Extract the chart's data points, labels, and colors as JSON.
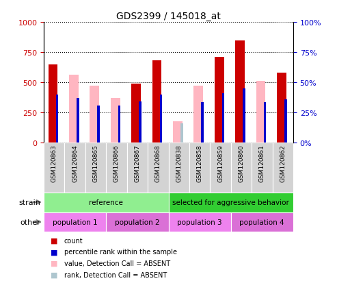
{
  "title": "GDS2399 / 145018_at",
  "samples": [
    "GSM120863",
    "GSM120864",
    "GSM120865",
    "GSM120866",
    "GSM120867",
    "GSM120868",
    "GSM120838",
    "GSM120858",
    "GSM120859",
    "GSM120860",
    "GSM120861",
    "GSM120862"
  ],
  "count": [
    650,
    0,
    0,
    0,
    490,
    680,
    0,
    0,
    710,
    850,
    0,
    580
  ],
  "value_absent": [
    0,
    565,
    470,
    370,
    0,
    0,
    175,
    470,
    0,
    0,
    510,
    0
  ],
  "percentile_rank": [
    400,
    370,
    310,
    310,
    340,
    400,
    0,
    335,
    410,
    450,
    335,
    360
  ],
  "rank_absent": [
    0,
    0,
    0,
    0,
    0,
    0,
    160,
    0,
    0,
    0,
    0,
    0
  ],
  "ylim": [
    0,
    1000
  ],
  "y2lim": [
    0,
    100
  ],
  "yticks": [
    0,
    250,
    500,
    750,
    1000
  ],
  "y2ticks": [
    0,
    25,
    50,
    75,
    100
  ],
  "color_count": "#cc0000",
  "color_rank": "#0000cc",
  "color_value_absent": "#ffb6c1",
  "color_rank_absent": "#aec6cf",
  "ylabel_left_color": "#cc0000",
  "ylabel_right_color": "#0000cc",
  "strain_data": [
    {
      "label": "reference",
      "start": 0,
      "end": 5,
      "color": "#90ee90"
    },
    {
      "label": "selected for aggressive behavior",
      "start": 6,
      "end": 11,
      "color": "#32cd32"
    }
  ],
  "other_data": [
    {
      "label": "population 1",
      "start": 0,
      "end": 2,
      "color": "#ee82ee"
    },
    {
      "label": "population 2",
      "start": 3,
      "end": 5,
      "color": "#da70d6"
    },
    {
      "label": "population 3",
      "start": 6,
      "end": 8,
      "color": "#ee82ee"
    },
    {
      "label": "population 4",
      "start": 9,
      "end": 11,
      "color": "#da70d6"
    }
  ],
  "legend_items": [
    {
      "label": "count",
      "color": "#cc0000"
    },
    {
      "label": "percentile rank within the sample",
      "color": "#0000cc"
    },
    {
      "label": "value, Detection Call = ABSENT",
      "color": "#ffb6c1"
    },
    {
      "label": "rank, Detection Call = ABSENT",
      "color": "#aec6cf"
    }
  ]
}
